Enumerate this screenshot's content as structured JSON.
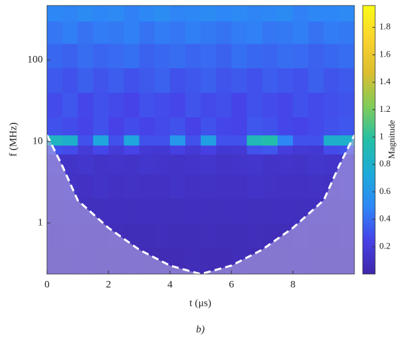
{
  "chart_data": {
    "type": "heatmap",
    "x_label": "t (μs)",
    "y_label": "f (MHz)",
    "caption": "b)",
    "xlim": [
      0,
      10
    ],
    "xticks": [
      0,
      2,
      4,
      6,
      8
    ],
    "ylim": [
      0.236,
      467
    ],
    "yticks": [
      1,
      10,
      100
    ],
    "y_log": true,
    "x_bins": [
      0,
      0.5,
      1,
      1.5,
      2,
      2.5,
      3,
      3.5,
      4,
      4.5,
      5,
      5.5,
      6,
      6.5,
      7,
      7.5,
      8,
      8.5,
      9,
      9.5,
      10
    ],
    "y_bins": [
      0.236,
      0.5,
      1,
      2,
      4,
      7,
      9,
      12,
      20,
      40,
      80,
      160,
      300,
      467
    ],
    "z": [
      [
        0.05,
        0.05,
        0.06,
        0.05,
        0.05,
        0.06,
        0.05,
        0.05,
        0.05,
        0.06,
        0.05,
        0.05,
        0.06,
        0.05,
        0.05,
        0.05,
        0.06,
        0.05,
        0.05,
        0.05
      ],
      [
        0.06,
        0.07,
        0.06,
        0.06,
        0.07,
        0.06,
        0.06,
        0.07,
        0.06,
        0.06,
        0.07,
        0.06,
        0.06,
        0.07,
        0.06,
        0.06,
        0.07,
        0.06,
        0.06,
        0.07
      ],
      [
        0.08,
        0.09,
        0.08,
        0.08,
        0.09,
        0.08,
        0.09,
        0.08,
        0.08,
        0.09,
        0.08,
        0.08,
        0.09,
        0.08,
        0.08,
        0.09,
        0.08,
        0.09,
        0.08,
        0.08
      ],
      [
        0.1,
        0.11,
        0.1,
        0.12,
        0.1,
        0.11,
        0.1,
        0.1,
        0.12,
        0.1,
        0.11,
        0.1,
        0.1,
        0.12,
        0.11,
        0.1,
        0.1,
        0.11,
        0.1,
        0.12
      ],
      [
        0.13,
        0.12,
        0.14,
        0.12,
        0.13,
        0.12,
        0.14,
        0.13,
        0.12,
        0.13,
        0.14,
        0.12,
        0.13,
        0.14,
        0.12,
        0.13,
        0.12,
        0.14,
        0.13,
        0.12
      ],
      [
        0.3,
        0.28,
        0.18,
        0.26,
        0.18,
        0.25,
        0.17,
        0.16,
        0.22,
        0.17,
        0.23,
        0.16,
        0.17,
        0.3,
        0.32,
        0.2,
        0.17,
        0.16,
        0.28,
        0.3
      ],
      [
        0.85,
        0.8,
        0.3,
        0.7,
        0.3,
        0.7,
        0.3,
        0.3,
        0.6,
        0.3,
        0.65,
        0.3,
        0.3,
        0.9,
        0.95,
        0.5,
        0.3,
        0.3,
        0.8,
        0.8
      ],
      [
        0.3,
        0.28,
        0.25,
        0.3,
        0.24,
        0.28,
        0.25,
        0.27,
        0.3,
        0.24,
        0.3,
        0.26,
        0.25,
        0.32,
        0.3,
        0.26,
        0.25,
        0.27,
        0.3,
        0.32
      ],
      [
        0.28,
        0.32,
        0.26,
        0.3,
        0.27,
        0.25,
        0.3,
        0.28,
        0.26,
        0.31,
        0.27,
        0.29,
        0.25,
        0.3,
        0.28,
        0.26,
        0.3,
        0.27,
        0.29,
        0.31
      ],
      [
        0.33,
        0.3,
        0.35,
        0.31,
        0.34,
        0.3,
        0.33,
        0.36,
        0.3,
        0.32,
        0.35,
        0.31,
        0.33,
        0.3,
        0.34,
        0.32,
        0.3,
        0.35,
        0.31,
        0.33
      ],
      [
        0.38,
        0.36,
        0.4,
        0.37,
        0.39,
        0.41,
        0.36,
        0.38,
        0.4,
        0.37,
        0.39,
        0.36,
        0.41,
        0.38,
        0.37,
        0.4,
        0.39,
        0.36,
        0.38,
        0.4
      ],
      [
        0.43,
        0.46,
        0.42,
        0.45,
        0.44,
        0.47,
        0.42,
        0.45,
        0.43,
        0.46,
        0.44,
        0.42,
        0.45,
        0.47,
        0.43,
        0.44,
        0.46,
        0.42,
        0.45,
        0.44
      ],
      [
        0.5,
        0.48,
        0.52,
        0.49,
        0.51,
        0.47,
        0.5,
        0.53,
        0.48,
        0.5,
        0.52,
        0.49,
        0.51,
        0.48,
        0.5,
        0.52,
        0.47,
        0.5,
        0.49,
        0.51
      ]
    ],
    "colorscale": [
      "#3e26a8",
      "#4742e8",
      "#2e87f7",
      "#1cabd9",
      "#24bfa6",
      "#81cc59",
      "#dcbe2f",
      "#fad32f",
      "#f9fb15"
    ],
    "colorbar": {
      "label": "Magnitude",
      "lim": [
        0,
        1.96
      ],
      "ticks": [
        0.2,
        0.4,
        0.6,
        0.8,
        1,
        1.2,
        1.4,
        1.6,
        1.8
      ]
    },
    "coi": {
      "x": [
        0,
        0.5,
        1,
        2,
        3,
        4,
        5,
        6,
        7,
        8,
        9,
        9.5,
        10
      ],
      "values": [
        12,
        5,
        1.9,
        0.87,
        0.47,
        0.3,
        0.236,
        0.3,
        0.47,
        0.87,
        1.9,
        5,
        12
      ],
      "color": "#ffffff"
    }
  }
}
